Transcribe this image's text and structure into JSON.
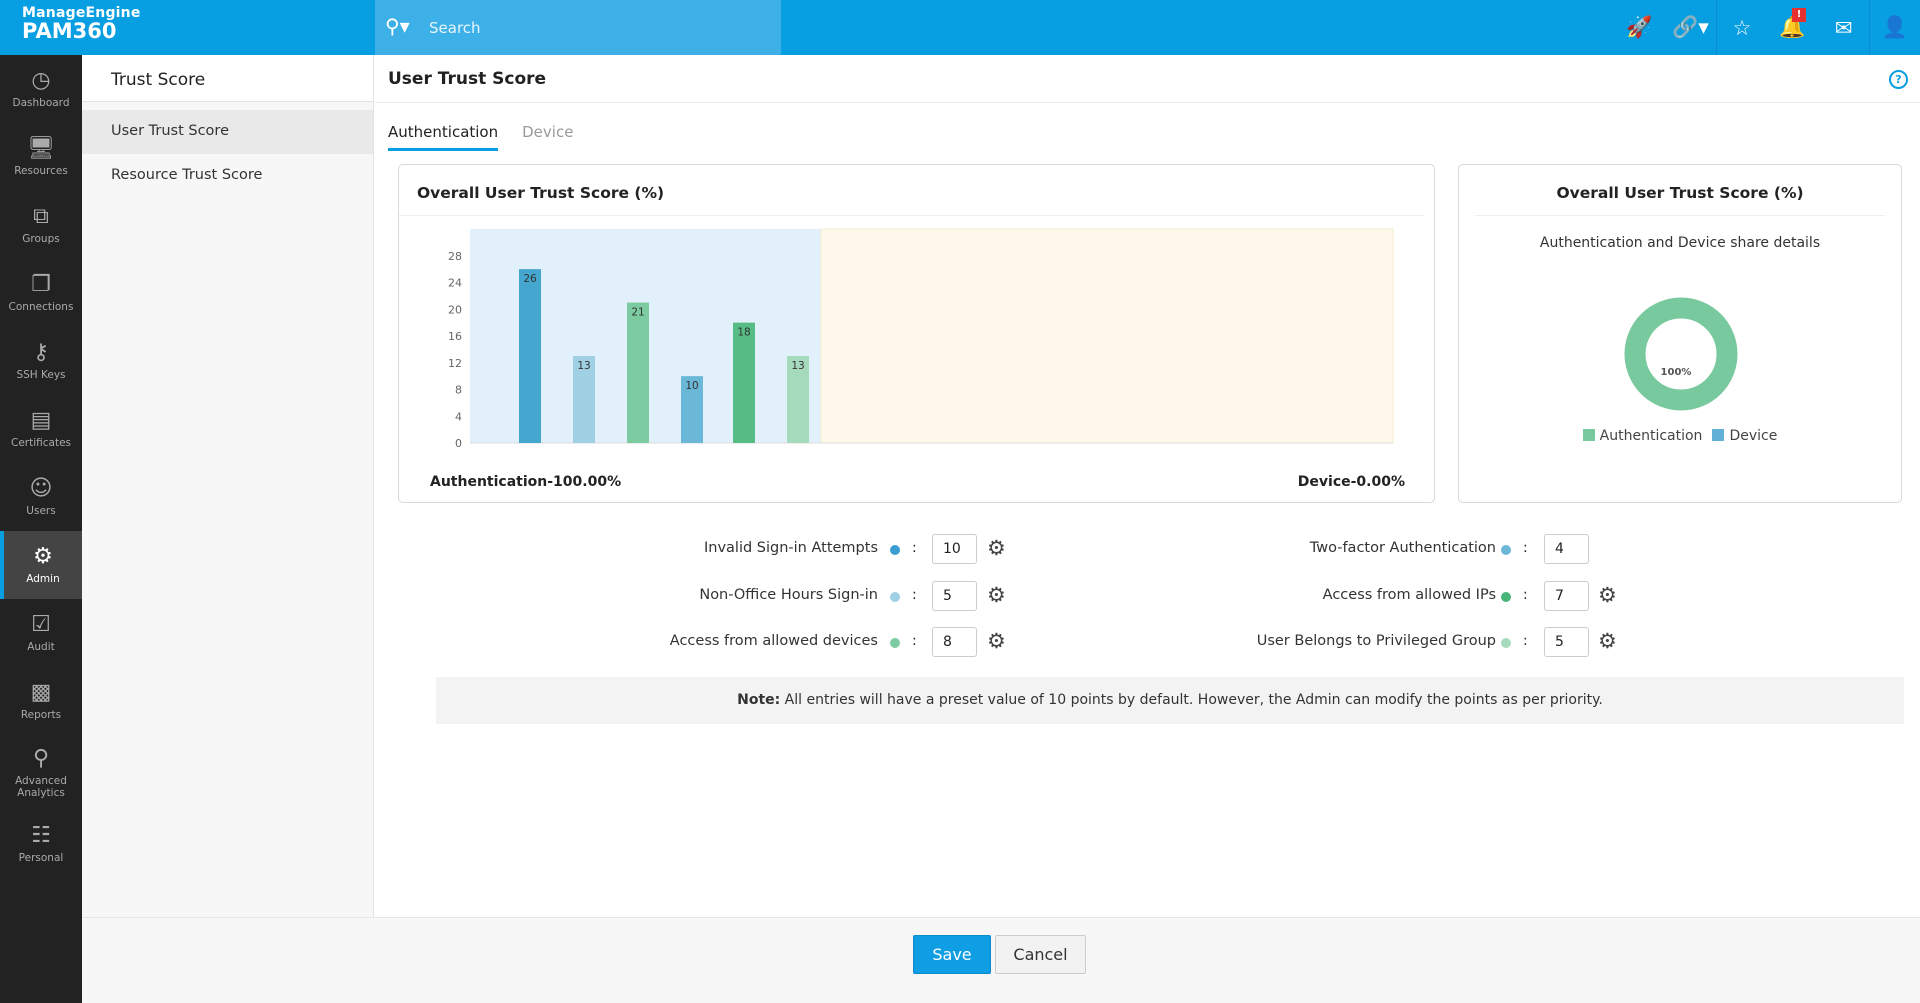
{
  "brand": {
    "vendor": "ManageEngine",
    "product": "PAM360"
  },
  "search": {
    "placeholder": "Search"
  },
  "topbar": {
    "icons": [
      "rocket-icon",
      "link-icon",
      "user-star-icon",
      "bell-icon",
      "mail-icon",
      "user-icon"
    ],
    "alert_badge": "!"
  },
  "nav": [
    {
      "label": "Dashboard",
      "icon": "dashboard-icon"
    },
    {
      "label": "Resources",
      "icon": "monitor-icon"
    },
    {
      "label": "Groups",
      "icon": "groups-icon"
    },
    {
      "label": "Connections",
      "icon": "connections-icon"
    },
    {
      "label": "SSH Keys",
      "icon": "ssh-key-icon"
    },
    {
      "label": "Certificates",
      "icon": "certificate-icon"
    },
    {
      "label": "Users",
      "icon": "user-icon"
    },
    {
      "label": "Admin",
      "icon": "gear-icon",
      "active": true
    },
    {
      "label": "Audit",
      "icon": "clipboard-check-icon"
    },
    {
      "label": "Reports",
      "icon": "bar-chart-icon"
    },
    {
      "label": "Advanced Analytics",
      "icon": "analytics-icon"
    },
    {
      "label": "Personal",
      "icon": "contact-book-icon"
    }
  ],
  "subnav": {
    "title": "Trust Score",
    "items": [
      "User Trust Score",
      "Resource Trust Score"
    ],
    "selected": "User Trust Score"
  },
  "page": {
    "title": "User Trust Score",
    "tabs": [
      "Authentication",
      "Device"
    ],
    "active_tab": "Authentication"
  },
  "chart_data": [
    {
      "type": "bar",
      "title": "Overall User Trust Score (%)",
      "categories": [
        "Invalid Sign-in Attempts",
        "Non-Office Hours Sign-in",
        "Access from allowed devices",
        "Two-factor Authentication",
        "Access from allowed IPs",
        "User Belongs to Privileged Group"
      ],
      "values": [
        26,
        13,
        21,
        10,
        18,
        13
      ],
      "colors": [
        "#45a7cf",
        "#9fd0e4",
        "#7dcba0",
        "#6bb7d8",
        "#57bd86",
        "#a6dabc"
      ],
      "yticks": [
        0,
        4,
        8,
        12,
        16,
        20,
        24,
        28
      ],
      "ylim": [
        0,
        32
      ],
      "regions": [
        {
          "label": "Authentication-100.00%",
          "color": "#e1f0fb"
        },
        {
          "label": "Device-0.00%",
          "color": "#fdf8ea"
        }
      ]
    },
    {
      "type": "pie",
      "title": "Overall User Trust Score (%)",
      "subtitle": "Authentication and Device share details",
      "center_label": "100%",
      "series": [
        {
          "name": "Authentication",
          "value": 100,
          "color": "#78c99d"
        },
        {
          "name": "Device",
          "value": 0,
          "color": "#62b0d8"
        }
      ],
      "legend": "bottom"
    }
  ],
  "form": {
    "left": [
      {
        "label": "Invalid Sign-in Attempts",
        "value": "10",
        "color": "#3a9ed0",
        "gear": true
      },
      {
        "label": "Non-Office Hours Sign-in",
        "value": "5",
        "color": "#9fd0e4",
        "gear": true
      },
      {
        "label": "Access from allowed devices",
        "value": "8",
        "color": "#7dcba0",
        "gear": true
      }
    ],
    "right": [
      {
        "label": "Two-factor Authentication",
        "value": "4",
        "color": "#6bb7d8",
        "gear": false
      },
      {
        "label": "Access from allowed IPs",
        "value": "7",
        "color": "#47b57a",
        "gear": true
      },
      {
        "label": "User Belongs to Privileged Group",
        "value": "5",
        "color": "#a6dabc",
        "gear": true
      }
    ],
    "separator": ":"
  },
  "note": {
    "label": "Note:",
    "text": " All entries will have a preset value of 10 points by default. However, the Admin can modify the points as per priority."
  },
  "buttons": {
    "save": "Save",
    "cancel": "Cancel"
  }
}
